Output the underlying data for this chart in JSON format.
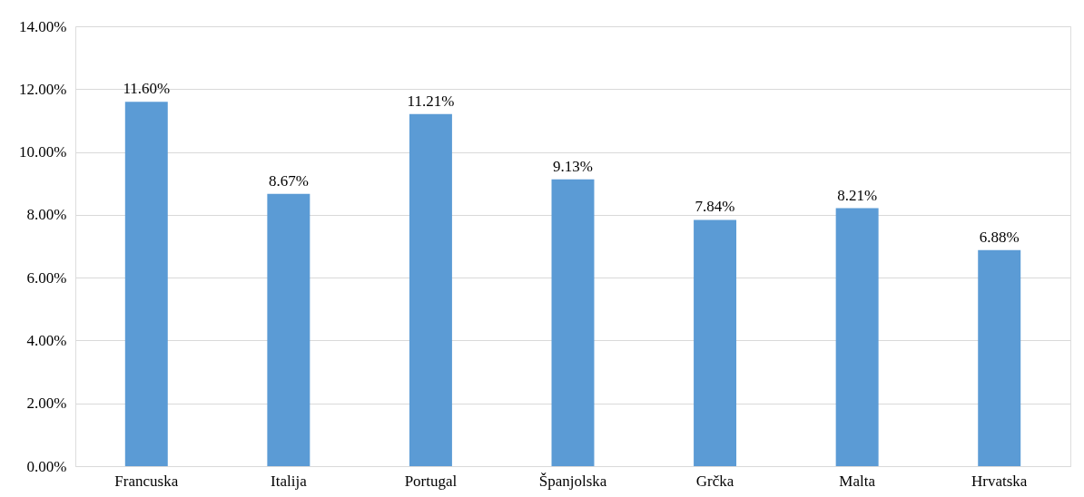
{
  "chart_data": {
    "type": "bar",
    "categories": [
      "Francuska",
      "Italija",
      "Portugal",
      "Španjolska",
      "Grčka",
      "Malta",
      "Hrvatska"
    ],
    "values": [
      11.6,
      8.67,
      11.21,
      9.13,
      7.84,
      8.21,
      6.88
    ],
    "value_labels": [
      "11.60%",
      "8.67%",
      "11.21%",
      "9.13%",
      "7.84%",
      "8.21%",
      "6.88%"
    ],
    "color": "#5b9bd5",
    "ylim": [
      0,
      14
    ],
    "yticks": [
      {
        "value": 0,
        "label": "0.00%"
      },
      {
        "value": 2,
        "label": "2.00%"
      },
      {
        "value": 4,
        "label": "4.00%"
      },
      {
        "value": 6,
        "label": "6.00%"
      },
      {
        "value": 8,
        "label": "8.00%"
      },
      {
        "value": 10,
        "label": "10.00%"
      },
      {
        "value": 12,
        "label": "12.00%"
      },
      {
        "value": 14,
        "label": "14.00%"
      }
    ],
    "grid": "y"
  }
}
